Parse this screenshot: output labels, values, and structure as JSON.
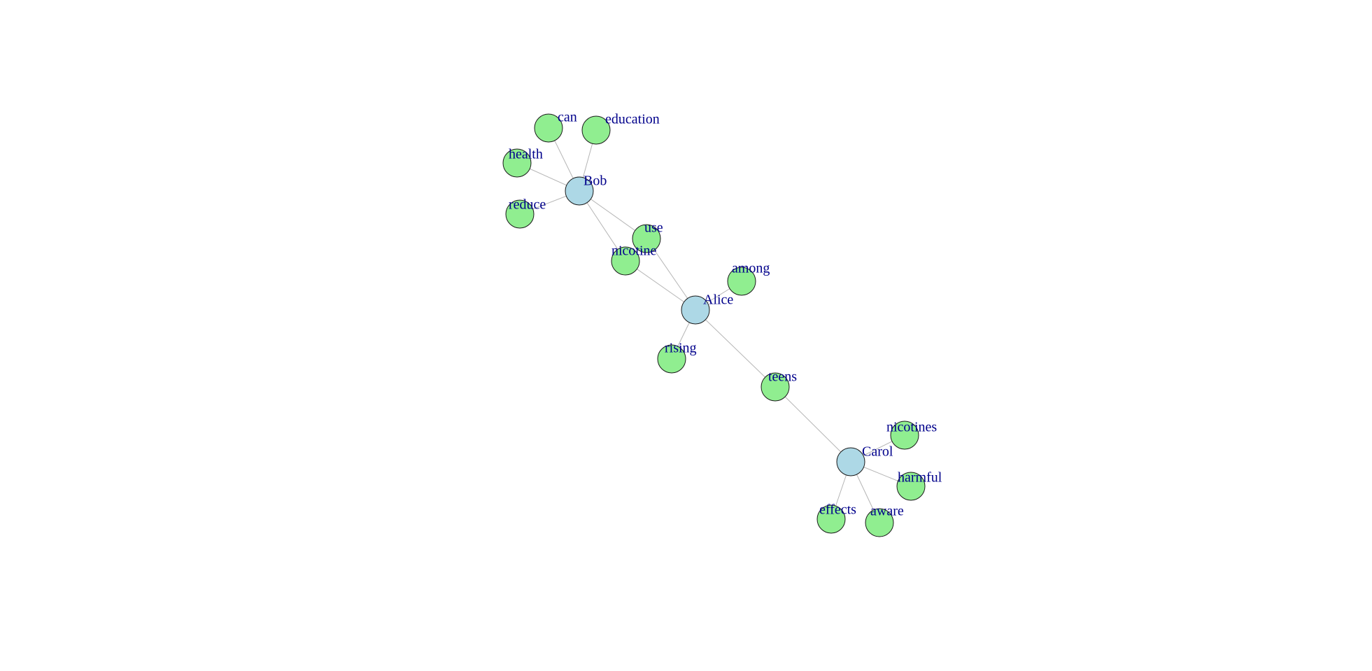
{
  "graph": {
    "colors": {
      "person_fill": "#add8e6",
      "word_fill": "#90ee90",
      "node_stroke": "#1a1a1a",
      "edge": "#b5b5b5",
      "label": "#00008b"
    },
    "nodes": [
      {
        "id": "bob",
        "label": "Bob",
        "kind": "person"
      },
      {
        "id": "alice",
        "label": "Alice",
        "kind": "person"
      },
      {
        "id": "carol",
        "label": "Carol",
        "kind": "person"
      },
      {
        "id": "can",
        "label": "can",
        "kind": "word"
      },
      {
        "id": "education",
        "label": "education",
        "kind": "word"
      },
      {
        "id": "health",
        "label": "health",
        "kind": "word"
      },
      {
        "id": "reduce",
        "label": "reduce",
        "kind": "word"
      },
      {
        "id": "use",
        "label": "use",
        "kind": "word"
      },
      {
        "id": "nicotine",
        "label": "nicotine",
        "kind": "word"
      },
      {
        "id": "among",
        "label": "among",
        "kind": "word"
      },
      {
        "id": "rising",
        "label": "rising",
        "kind": "word"
      },
      {
        "id": "teens",
        "label": "teens",
        "kind": "word"
      },
      {
        "id": "nicotines",
        "label": "nicotines",
        "kind": "word"
      },
      {
        "id": "harmful",
        "label": "harmful",
        "kind": "word"
      },
      {
        "id": "effects",
        "label": "effects",
        "kind": "word"
      },
      {
        "id": "aware",
        "label": "aware",
        "kind": "word"
      }
    ],
    "edges": [
      [
        "bob",
        "can"
      ],
      [
        "bob",
        "education"
      ],
      [
        "bob",
        "health"
      ],
      [
        "bob",
        "reduce"
      ],
      [
        "bob",
        "use"
      ],
      [
        "bob",
        "nicotine"
      ],
      [
        "alice",
        "use"
      ],
      [
        "alice",
        "nicotine"
      ],
      [
        "alice",
        "among"
      ],
      [
        "alice",
        "rising"
      ],
      [
        "alice",
        "teens"
      ],
      [
        "carol",
        "teens"
      ],
      [
        "carol",
        "nicotines"
      ],
      [
        "carol",
        "harmful"
      ],
      [
        "carol",
        "effects"
      ],
      [
        "carol",
        "aware"
      ]
    ]
  }
}
